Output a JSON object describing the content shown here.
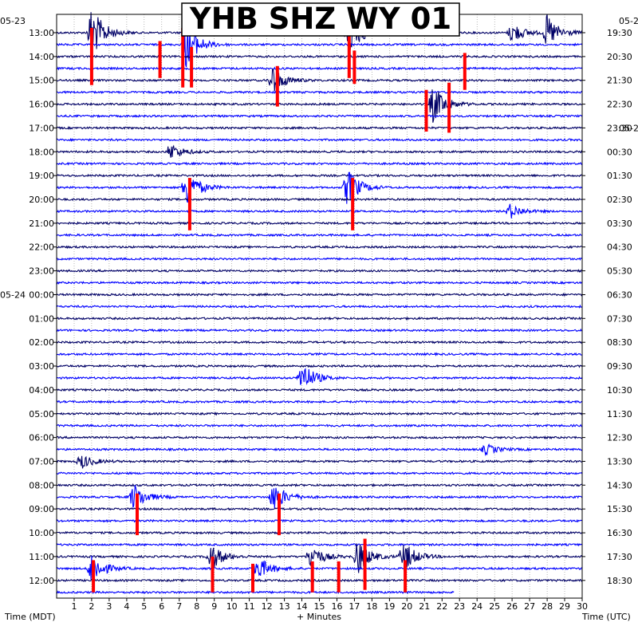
{
  "chart_data": {
    "type": "line",
    "title": "YHB SHZ WY 01",
    "xlabel": "+ Minutes",
    "left_axis_caption": "Time (MDT)",
    "right_axis_caption": "Time (UTC)",
    "xlim": [
      0,
      30
    ],
    "x_ticks": [
      1,
      2,
      3,
      4,
      5,
      6,
      7,
      8,
      9,
      10,
      11,
      12,
      13,
      14,
      15,
      16,
      17,
      18,
      19,
      20,
      21,
      22,
      23,
      24,
      25,
      26,
      27,
      28,
      29,
      30
    ],
    "left_date_labels": [
      {
        "row": 0,
        "label": "05-23"
      },
      {
        "row": 22,
        "label": "05-24"
      }
    ],
    "right_date_labels": [
      {
        "row": 0,
        "label": "05-2"
      },
      {
        "row": 9,
        "label": "05-2"
      }
    ],
    "left_hour_labels": [
      {
        "row": 0,
        "label": "13:00"
      },
      {
        "row": 2,
        "label": "14:00"
      },
      {
        "row": 4,
        "label": "15:00"
      },
      {
        "row": 6,
        "label": "16:00"
      },
      {
        "row": 8,
        "label": "17:00"
      },
      {
        "row": 10,
        "label": "18:00"
      },
      {
        "row": 12,
        "label": "19:00"
      },
      {
        "row": 14,
        "label": "20:00"
      },
      {
        "row": 16,
        "label": "21:00"
      },
      {
        "row": 18,
        "label": "22:00"
      },
      {
        "row": 20,
        "label": "23:00"
      },
      {
        "row": 22,
        "label": "00:00"
      },
      {
        "row": 24,
        "label": "01:00"
      },
      {
        "row": 26,
        "label": "02:00"
      },
      {
        "row": 28,
        "label": "03:00"
      },
      {
        "row": 30,
        "label": "04:00"
      },
      {
        "row": 32,
        "label": "05:00"
      },
      {
        "row": 34,
        "label": "06:00"
      },
      {
        "row": 36,
        "label": "07:00"
      },
      {
        "row": 38,
        "label": "08:00"
      },
      {
        "row": 40,
        "label": "09:00"
      },
      {
        "row": 42,
        "label": "10:00"
      },
      {
        "row": 44,
        "label": "11:00"
      },
      {
        "row": 46,
        "label": "12:00"
      }
    ],
    "right_hour_labels": [
      {
        "row": 0,
        "label": "19:30"
      },
      {
        "row": 2,
        "label": "20:30"
      },
      {
        "row": 4,
        "label": "21:30"
      },
      {
        "row": 6,
        "label": "22:30"
      },
      {
        "row": 8,
        "label": "23:30"
      },
      {
        "row": 10,
        "label": "00:30"
      },
      {
        "row": 12,
        "label": "01:30"
      },
      {
        "row": 14,
        "label": "02:30"
      },
      {
        "row": 16,
        "label": "03:30"
      },
      {
        "row": 18,
        "label": "04:30"
      },
      {
        "row": 20,
        "label": "05:30"
      },
      {
        "row": 22,
        "label": "06:30"
      },
      {
        "row": 24,
        "label": "07:30"
      },
      {
        "row": 26,
        "label": "08:30"
      },
      {
        "row": 28,
        "label": "09:30"
      },
      {
        "row": 30,
        "label": "10:30"
      },
      {
        "row": 32,
        "label": "11:30"
      },
      {
        "row": 34,
        "label": "12:30"
      },
      {
        "row": 36,
        "label": "13:30"
      },
      {
        "row": 38,
        "label": "14:30"
      },
      {
        "row": 40,
        "label": "15:30"
      },
      {
        "row": 42,
        "label": "16:30"
      },
      {
        "row": 44,
        "label": "17:30"
      },
      {
        "row": 46,
        "label": "18:30"
      }
    ],
    "row_count": 48,
    "row_minutes": 30,
    "last_row_end_minute": 22.7,
    "trace_colors": [
      "#000066",
      "#0000ff"
    ],
    "clip_color": "#ff0000",
    "events": [
      {
        "row": 0,
        "minute": 2.0,
        "amp": 2.6
      },
      {
        "row": 1,
        "minute": 7.4,
        "amp": 2.2
      },
      {
        "row": 0,
        "minute": 16.6,
        "amp": 2.6
      },
      {
        "row": 0,
        "minute": 28.0,
        "amp": 1.6
      },
      {
        "row": 0,
        "minute": 26.0,
        "amp": 1.0
      },
      {
        "row": 4,
        "minute": 12.3,
        "amp": 1.4
      },
      {
        "row": 6,
        "minute": 21.5,
        "amp": 1.8
      },
      {
        "row": 13,
        "minute": 7.4,
        "amp": 1.8
      },
      {
        "row": 13,
        "minute": 16.6,
        "amp": 1.8
      },
      {
        "row": 10,
        "minute": 6.5,
        "amp": 0.8
      },
      {
        "row": 15,
        "minute": 25.9,
        "amp": 0.7
      },
      {
        "row": 29,
        "minute": 14.0,
        "amp": 1.6
      },
      {
        "row": 36,
        "minute": 1.4,
        "amp": 0.7
      },
      {
        "row": 35,
        "minute": 24.5,
        "amp": 0.5
      },
      {
        "row": 39,
        "minute": 4.4,
        "amp": 1.3
      },
      {
        "row": 39,
        "minute": 12.4,
        "amp": 1.4
      },
      {
        "row": 45,
        "minute": 2.0,
        "amp": 1.5
      },
      {
        "row": 44,
        "minute": 8.8,
        "amp": 1.3
      },
      {
        "row": 45,
        "minute": 11.5,
        "amp": 1.1
      },
      {
        "row": 44,
        "minute": 14.5,
        "amp": 1.2
      },
      {
        "row": 44,
        "minute": 17.2,
        "amp": 1.6
      },
      {
        "row": 44,
        "minute": 19.8,
        "amp": 1.5
      }
    ],
    "clips": [
      {
        "row": 2,
        "minute": 2.0,
        "up": 2.4,
        "down": 2.4
      },
      {
        "row": 2,
        "minute": 7.2,
        "up": 2.4,
        "down": 2.6
      },
      {
        "row": 2,
        "minute": 7.7,
        "up": 0.8,
        "down": 2.6
      },
      {
        "row": 1,
        "minute": 5.9,
        "up": 0.3,
        "down": 2.8
      },
      {
        "row": 2,
        "minute": 16.7,
        "up": 2.8,
        "down": 1.8
      },
      {
        "row": 2,
        "minute": 17.0,
        "up": 0.5,
        "down": 2.3
      },
      {
        "row": 4,
        "minute": 12.6,
        "up": 1.2,
        "down": 2.2
      },
      {
        "row": 4,
        "minute": 23.3,
        "up": 2.3,
        "down": 0.8
      },
      {
        "row": 6,
        "minute": 21.1,
        "up": 1.2,
        "down": 2.3
      },
      {
        "row": 6,
        "minute": 22.4,
        "up": 1.8,
        "down": 2.4
      },
      {
        "row": 14,
        "minute": 7.6,
        "up": 1.8,
        "down": 2.6
      },
      {
        "row": 14,
        "minute": 16.9,
        "up": 1.8,
        "down": 2.6
      },
      {
        "row": 40,
        "minute": 4.6,
        "up": 1.3,
        "down": 2.2
      },
      {
        "row": 40,
        "minute": 12.7,
        "up": 1.3,
        "down": 2.2
      },
      {
        "row": 45,
        "minute": 2.1,
        "up": 0.7,
        "down": 2.0
      },
      {
        "row": 45,
        "minute": 8.9,
        "up": 1.0,
        "down": 2.0
      },
      {
        "row": 45,
        "minute": 11.2,
        "up": 0.4,
        "down": 2.0
      },
      {
        "row": 45,
        "minute": 14.6,
        "up": 0.6,
        "down": 2.0
      },
      {
        "row": 45,
        "minute": 16.1,
        "up": 0.6,
        "down": 2.0
      },
      {
        "row": 44,
        "minute": 17.6,
        "up": 1.5,
        "down": 2.8
      },
      {
        "row": 45,
        "minute": 19.9,
        "up": 0.7,
        "down": 2.0
      }
    ]
  }
}
